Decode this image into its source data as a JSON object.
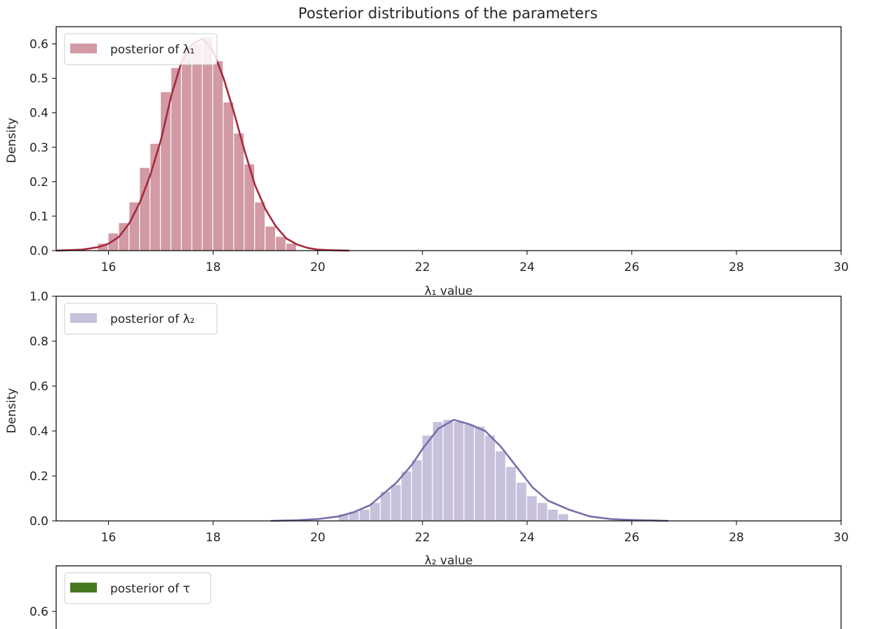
{
  "figure": {
    "title": "Posterior distributions of the parameters"
  },
  "chart_data": [
    {
      "type": "bar",
      "subtype": "histogram-with-kde",
      "xlabel": "λ₁ value",
      "ylabel": "Density",
      "xlim": [
        15,
        30
      ],
      "ylim": [
        0,
        0.65
      ],
      "xticks": [
        "16",
        "18",
        "20",
        "22",
        "24",
        "26",
        "28",
        "30"
      ],
      "yticks": [
        "0.0",
        "0.1",
        "0.2",
        "0.3",
        "0.4",
        "0.5",
        "0.6"
      ],
      "legend": {
        "placement": "top-left",
        "label": "posterior of λ₁"
      },
      "color_fill": "#d29aa5",
      "color_line": "#a52a3c",
      "bins": [
        {
          "x0": 15.8,
          "x1": 16.0,
          "value": 0.02
        },
        {
          "x0": 16.0,
          "x1": 16.2,
          "value": 0.05
        },
        {
          "x0": 16.2,
          "x1": 16.4,
          "value": 0.08
        },
        {
          "x0": 16.4,
          "x1": 16.6,
          "value": 0.14
        },
        {
          "x0": 16.6,
          "x1": 16.8,
          "value": 0.24
        },
        {
          "x0": 16.8,
          "x1": 17.0,
          "value": 0.31
        },
        {
          "x0": 17.0,
          "x1": 17.2,
          "value": 0.46
        },
        {
          "x0": 17.2,
          "x1": 17.4,
          "value": 0.53
        },
        {
          "x0": 17.4,
          "x1": 17.6,
          "value": 0.59
        },
        {
          "x0": 17.6,
          "x1": 17.8,
          "value": 0.6
        },
        {
          "x0": 17.8,
          "x1": 18.0,
          "value": 0.62
        },
        {
          "x0": 18.0,
          "x1": 18.2,
          "value": 0.55
        },
        {
          "x0": 18.2,
          "x1": 18.4,
          "value": 0.43
        },
        {
          "x0": 18.4,
          "x1": 18.6,
          "value": 0.34
        },
        {
          "x0": 18.6,
          "x1": 18.8,
          "value": 0.25
        },
        {
          "x0": 18.8,
          "x1": 19.0,
          "value": 0.14
        },
        {
          "x0": 19.0,
          "x1": 19.2,
          "value": 0.07
        },
        {
          "x0": 19.2,
          "x1": 19.4,
          "value": 0.04
        },
        {
          "x0": 19.4,
          "x1": 19.6,
          "value": 0.02
        }
      ],
      "kde": {
        "x": [
          15.0,
          15.5,
          15.8,
          16.0,
          16.2,
          16.4,
          16.6,
          16.8,
          17.0,
          17.2,
          17.4,
          17.6,
          17.8,
          18.0,
          18.2,
          18.4,
          18.6,
          18.8,
          19.0,
          19.2,
          19.4,
          19.6,
          19.8,
          20.0,
          20.3,
          20.6
        ],
        "y": [
          0.0,
          0.003,
          0.01,
          0.02,
          0.04,
          0.08,
          0.14,
          0.22,
          0.32,
          0.45,
          0.55,
          0.6,
          0.615,
          0.58,
          0.5,
          0.4,
          0.29,
          0.19,
          0.12,
          0.07,
          0.035,
          0.018,
          0.008,
          0.003,
          0.001,
          0.0
        ]
      }
    },
    {
      "type": "bar",
      "subtype": "histogram-with-kde",
      "xlabel": "λ₂ value",
      "ylabel": "Density",
      "xlim": [
        15,
        30
      ],
      "ylim": [
        0,
        1.0
      ],
      "xticks": [
        "16",
        "18",
        "20",
        "22",
        "24",
        "26",
        "28",
        "30"
      ],
      "yticks": [
        "0.0",
        "0.2",
        "0.4",
        "0.6",
        "0.8",
        "1.0"
      ],
      "legend": {
        "placement": "top-left",
        "label": "posterior of λ₂"
      },
      "color_fill": "#c8c1dc",
      "color_line": "#7a6eab",
      "bins": [
        {
          "x0": 20.4,
          "x1": 20.6,
          "value": 0.03
        },
        {
          "x0": 20.6,
          "x1": 20.8,
          "value": 0.04
        },
        {
          "x0": 20.8,
          "x1": 21.0,
          "value": 0.05
        },
        {
          "x0": 21.0,
          "x1": 21.2,
          "value": 0.08
        },
        {
          "x0": 21.2,
          "x1": 21.4,
          "value": 0.13
        },
        {
          "x0": 21.4,
          "x1": 21.6,
          "value": 0.16
        },
        {
          "x0": 21.6,
          "x1": 21.8,
          "value": 0.22
        },
        {
          "x0": 21.8,
          "x1": 22.0,
          "value": 0.27
        },
        {
          "x0": 22.0,
          "x1": 22.2,
          "value": 0.38
        },
        {
          "x0": 22.2,
          "x1": 22.4,
          "value": 0.44
        },
        {
          "x0": 22.4,
          "x1": 22.6,
          "value": 0.45
        },
        {
          "x0": 22.6,
          "x1": 22.8,
          "value": 0.44
        },
        {
          "x0": 22.8,
          "x1": 23.0,
          "value": 0.43
        },
        {
          "x0": 23.0,
          "x1": 23.2,
          "value": 0.42
        },
        {
          "x0": 23.2,
          "x1": 23.4,
          "value": 0.38
        },
        {
          "x0": 23.4,
          "x1": 23.6,
          "value": 0.31
        },
        {
          "x0": 23.6,
          "x1": 23.8,
          "value": 0.24
        },
        {
          "x0": 23.8,
          "x1": 24.0,
          "value": 0.17
        },
        {
          "x0": 24.0,
          "x1": 24.2,
          "value": 0.11
        },
        {
          "x0": 24.2,
          "x1": 24.4,
          "value": 0.08
        },
        {
          "x0": 24.4,
          "x1": 24.6,
          "value": 0.05
        },
        {
          "x0": 24.6,
          "x1": 24.8,
          "value": 0.03
        }
      ],
      "kde": {
        "x": [
          19.1,
          19.6,
          20.0,
          20.4,
          20.7,
          21.0,
          21.2,
          21.5,
          21.8,
          22.0,
          22.3,
          22.6,
          22.9,
          23.2,
          23.5,
          23.8,
          24.1,
          24.4,
          24.8,
          25.2,
          25.6,
          26.0,
          26.4,
          26.7
        ],
        "y": [
          0.0,
          0.003,
          0.008,
          0.02,
          0.04,
          0.07,
          0.11,
          0.17,
          0.25,
          0.32,
          0.41,
          0.45,
          0.43,
          0.4,
          0.33,
          0.24,
          0.15,
          0.09,
          0.05,
          0.02,
          0.008,
          0.004,
          0.002,
          0.0
        ]
      }
    },
    {
      "type": "bar",
      "subtype": "histogram",
      "yticks": [
        "0.6"
      ],
      "legend": {
        "placement": "top-left",
        "label": "posterior of τ"
      },
      "color_fill": "#467821",
      "note_visible": "panel cropped at bottom of image"
    }
  ]
}
